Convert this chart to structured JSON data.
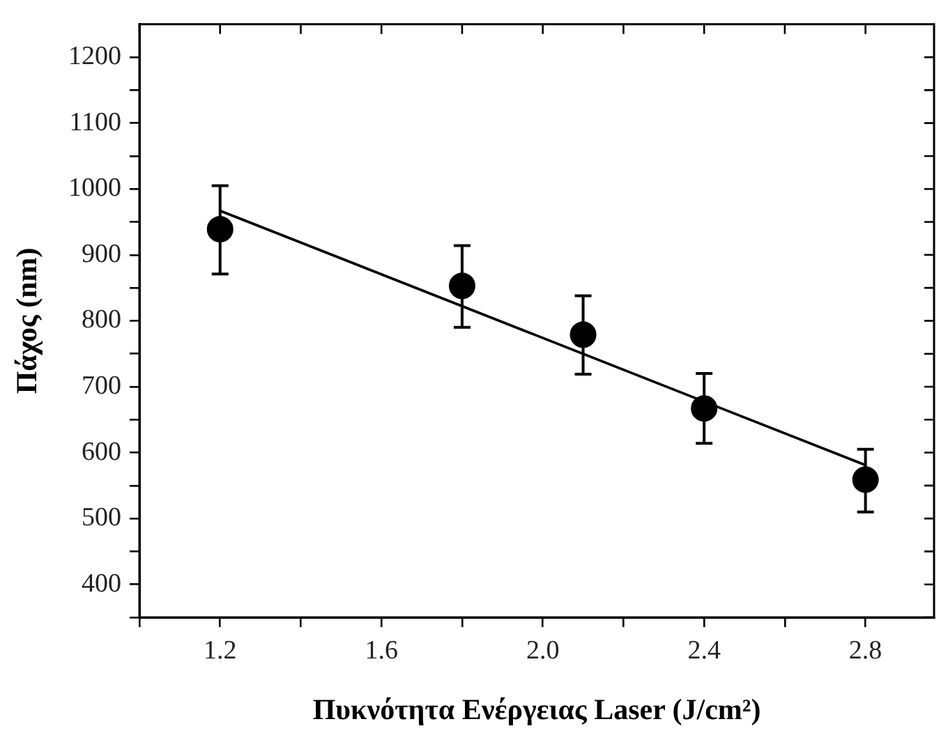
{
  "chart_data": {
    "type": "scatter",
    "xlabel": "Πυκνότητα Ενέργειας Laser (J/cm²)",
    "ylabel": "Πάχος (nm)",
    "xlim": [
      1.0,
      2.97
    ],
    "ylim": [
      350,
      1250
    ],
    "xticks": [
      {
        "value": 1.0,
        "label": null
      },
      1.2,
      {
        "value": 1.4,
        "label": null
      },
      1.6,
      {
        "value": 1.8,
        "label": null
      },
      {
        "value": 2.0,
        "label": "2.0"
      },
      {
        "value": 2.2,
        "label": null
      },
      2.4,
      {
        "value": 2.6,
        "label": null
      },
      2.8
    ],
    "yticks": [
      {
        "value": 350,
        "label": null
      },
      400,
      {
        "value": 450,
        "label": null
      },
      500,
      {
        "value": 550,
        "label": null
      },
      600,
      {
        "value": 650,
        "label": null
      },
      700,
      {
        "value": 750,
        "label": null
      },
      800,
      {
        "value": 850,
        "label": null
      },
      900,
      {
        "value": 950,
        "label": null
      },
      1000,
      {
        "value": 1050,
        "label": null
      },
      1100,
      {
        "value": 1150,
        "label": null
      },
      1200
    ],
    "grid": false,
    "legend": false,
    "series": [
      {
        "type": "scatter",
        "color": "#000000",
        "marker": "circle",
        "x": [
          1.2,
          1.8,
          2.1,
          2.4,
          2.8
        ],
        "values": [
          939,
          853,
          779,
          667,
          559
        ],
        "errors": [
          [
            871,
            1005
          ],
          [
            790,
            914
          ],
          [
            719,
            838
          ],
          [
            614,
            720
          ],
          [
            510,
            605
          ]
        ]
      },
      {
        "type": "line",
        "color": "#000000",
        "marker": "none",
        "line_style": "solid",
        "x": [
          1.2,
          2.8
        ],
        "values": [
          967,
          581
        ]
      }
    ]
  }
}
